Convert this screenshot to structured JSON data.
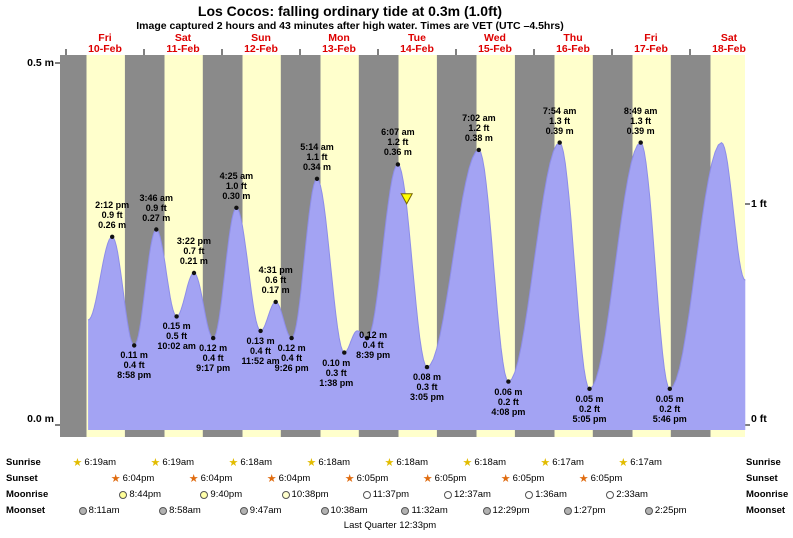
{
  "title": "Los Cocos: falling  ordinary tide at 0.3m (1.0ft)",
  "subtitle": "Image captured 2 hours and 43 minutes after high water. Times are VET (UTC –4.5hrs)",
  "colors": {
    "night": "#8a8a8a",
    "day": "#ffffcc",
    "tide_fill": "#a3a3f3",
    "tide_stroke": "#8d8de8",
    "day_label": "#dd0000",
    "marker_fill": "#ffff00",
    "marker_stroke": "#776600"
  },
  "days": [
    {
      "name": "Fri",
      "date": "10-Feb"
    },
    {
      "name": "Sat",
      "date": "11-Feb"
    },
    {
      "name": "Sun",
      "date": "12-Feb"
    },
    {
      "name": "Mon",
      "date": "13-Feb"
    },
    {
      "name": "Tue",
      "date": "14-Feb"
    },
    {
      "name": "Wed",
      "date": "15-Feb"
    },
    {
      "name": "Thu",
      "date": "16-Feb"
    },
    {
      "name": "Fri",
      "date": "17-Feb"
    },
    {
      "name": "Sat",
      "date": "18-Feb"
    }
  ],
  "y_axis": {
    "left_top": "0.5 m",
    "left_bottom": "0.0 m",
    "right_top": "1 ft",
    "right_bottom": "0 ft"
  },
  "chart_data": {
    "type": "area",
    "title": "Los Cocos tide height, Fri 10-Feb to Sat 18-Feb",
    "x_unit": "hours from Fri 10-Feb 00:00 VET",
    "y_unit": "m",
    "ylim": [
      0,
      0.5
    ],
    "t_range": [
      -2,
      209
    ],
    "daylight_hours": [
      6.3,
      18.1
    ],
    "curve_start": {
      "t": 6.8,
      "h": 0.145
    },
    "curve_end": {
      "t": 209,
      "h": 0.2
    },
    "tide_events": [
      {
        "kind": "high",
        "t": 14.2,
        "h": 0.26,
        "lines": [
          "2:12 pm",
          "0.9 ft",
          "0.26 m"
        ]
      },
      {
        "kind": "low",
        "t": 20.97,
        "h": 0.11,
        "lines": [
          "0.11 m",
          "0.4 ft",
          "8:58 pm"
        ]
      },
      {
        "kind": "high",
        "t": 27.77,
        "h": 0.27,
        "lines": [
          "3:46 am",
          "0.9 ft",
          "0.27 m"
        ]
      },
      {
        "kind": "low",
        "t": 34.03,
        "h": 0.15,
        "lines": [
          "0.15 m",
          "0.5 ft",
          "10:02 am"
        ]
      },
      {
        "kind": "high",
        "t": 39.37,
        "h": 0.21,
        "lines": [
          "3:22 pm",
          "0.7 ft",
          "0.21 m"
        ]
      },
      {
        "kind": "low",
        "t": 45.28,
        "h": 0.12,
        "lines": [
          "0.12 m",
          "0.4 ft",
          "9:17 pm"
        ]
      },
      {
        "kind": "high",
        "t": 52.42,
        "h": 0.3,
        "lines": [
          "4:25 am",
          "1.0 ft",
          "0.30 m"
        ]
      },
      {
        "kind": "low",
        "t": 59.87,
        "h": 0.13,
        "lines": [
          "0.13 m",
          "0.4 ft",
          "11:52 am"
        ]
      },
      {
        "kind": "high",
        "t": 64.52,
        "h": 0.17,
        "lines": [
          "4:31 pm",
          "0.6 ft",
          "0.17 m"
        ]
      },
      {
        "kind": "low",
        "t": 69.43,
        "h": 0.12,
        "lines": [
          "0.12 m",
          "0.4 ft",
          "9:26 pm"
        ]
      },
      {
        "kind": "high",
        "t": 77.23,
        "h": 0.34,
        "lines": [
          "5:14 am",
          "1.1 ft",
          "0.34 m"
        ]
      },
      {
        "kind": "low",
        "t": 85.63,
        "h": 0.1,
        "lines": [
          "0.10 m",
          "0.3 ft",
          "1:38 pm"
        ],
        "dx": -8
      },
      {
        "kind": "high",
        "t": 89.6,
        "h": 0.13,
        "lines": []
      },
      {
        "kind": "low",
        "t": 92.65,
        "h": 0.12,
        "lines": [
          "0.12 m",
          "0.4 ft",
          "8:39 pm"
        ],
        "dx": 6,
        "dy": -13
      },
      {
        "kind": "high",
        "t": 102.12,
        "h": 0.36,
        "lines": [
          "6:07 am",
          "1.2 ft",
          "0.36 m"
        ]
      },
      {
        "kind": "low",
        "t": 111.08,
        "h": 0.08,
        "lines": [
          "0.08 m",
          "0.3 ft",
          "3:05 pm"
        ]
      },
      {
        "kind": "high",
        "t": 127.03,
        "h": 0.38,
        "lines": [
          "7:02 am",
          "1.2 ft",
          "0.38 m"
        ]
      },
      {
        "kind": "low",
        "t": 136.13,
        "h": 0.06,
        "lines": [
          "0.06 m",
          "0.2 ft",
          "4:08 pm"
        ]
      },
      {
        "kind": "high",
        "t": 151.9,
        "h": 0.39,
        "lines": [
          "7:54 am",
          "1.3 ft",
          "0.39 m"
        ]
      },
      {
        "kind": "low",
        "t": 161.08,
        "h": 0.05,
        "lines": [
          "0.05 m",
          "0.2 ft",
          "5:05 pm"
        ]
      },
      {
        "kind": "high",
        "t": 176.82,
        "h": 0.39,
        "lines": [
          "8:49 am",
          "1.3 ft",
          "0.39 m"
        ]
      },
      {
        "kind": "low",
        "t": 185.77,
        "h": 0.05,
        "lines": [
          "0.05 m",
          "0.2 ft",
          "5:46 pm"
        ]
      },
      {
        "kind": "high",
        "t": 201.7,
        "h": 0.39,
        "lines": []
      }
    ],
    "current_marker": {
      "t": 104.83,
      "h": 0.3,
      "shape": "triangle-down"
    }
  },
  "astro": {
    "sunrise": {
      "label": "Sunrise",
      "entries": [
        {
          "time": "6:19am",
          "t": 6.32
        },
        {
          "time": "6:19am",
          "t": 30.32
        },
        {
          "time": "6:18am",
          "t": 54.3
        },
        {
          "time": "6:18am",
          "t": 78.3
        },
        {
          "time": "6:18am",
          "t": 102.3
        },
        {
          "time": "6:18am",
          "t": 126.3
        },
        {
          "time": "6:17am",
          "t": 150.28
        },
        {
          "time": "6:17am",
          "t": 174.28
        }
      ]
    },
    "sunset": {
      "label": "Sunset",
      "entries": [
        {
          "time": "6:04pm",
          "t": 18.07
        },
        {
          "time": "6:04pm",
          "t": 42.07
        },
        {
          "time": "6:04pm",
          "t": 66.07
        },
        {
          "time": "6:05pm",
          "t": 90.08
        },
        {
          "time": "6:05pm",
          "t": 114.08
        },
        {
          "time": "6:05pm",
          "t": 138.08
        },
        {
          "time": "6:05pm",
          "t": 162.08
        }
      ]
    },
    "moonrise": {
      "label": "Moonrise",
      "entries": [
        {
          "time": "8:44pm",
          "t": 20.73,
          "fill": "#ffff99"
        },
        {
          "time": "9:40pm",
          "t": 45.67,
          "fill": "#ffffaa"
        },
        {
          "time": "10:38pm",
          "t": 70.63,
          "fill": "#ffffcc"
        },
        {
          "time": "11:37pm",
          "t": 95.62,
          "fill": "#ffffff"
        },
        {
          "time": "12:37am",
          "t": 120.62,
          "fill": "#ffffff"
        },
        {
          "time": "1:36am",
          "t": 145.6,
          "fill": "#ffffff"
        },
        {
          "time": "2:33am",
          "t": 170.55,
          "fill": "#ffffff"
        }
      ]
    },
    "moonset": {
      "label": "Moonset",
      "entries": [
        {
          "time": "8:11am",
          "t": 8.18
        },
        {
          "time": "8:58am",
          "t": 32.97
        },
        {
          "time": "9:47am",
          "t": 57.78
        },
        {
          "time": "10:38am",
          "t": 82.63
        },
        {
          "time": "11:32am",
          "t": 107.53
        },
        {
          "time": "12:29pm",
          "t": 132.48
        },
        {
          "time": "1:27pm",
          "t": 157.45
        },
        {
          "time": "2:25pm",
          "t": 182.42
        }
      ]
    },
    "moon_phase": "Last Quarter 12:33pm"
  }
}
